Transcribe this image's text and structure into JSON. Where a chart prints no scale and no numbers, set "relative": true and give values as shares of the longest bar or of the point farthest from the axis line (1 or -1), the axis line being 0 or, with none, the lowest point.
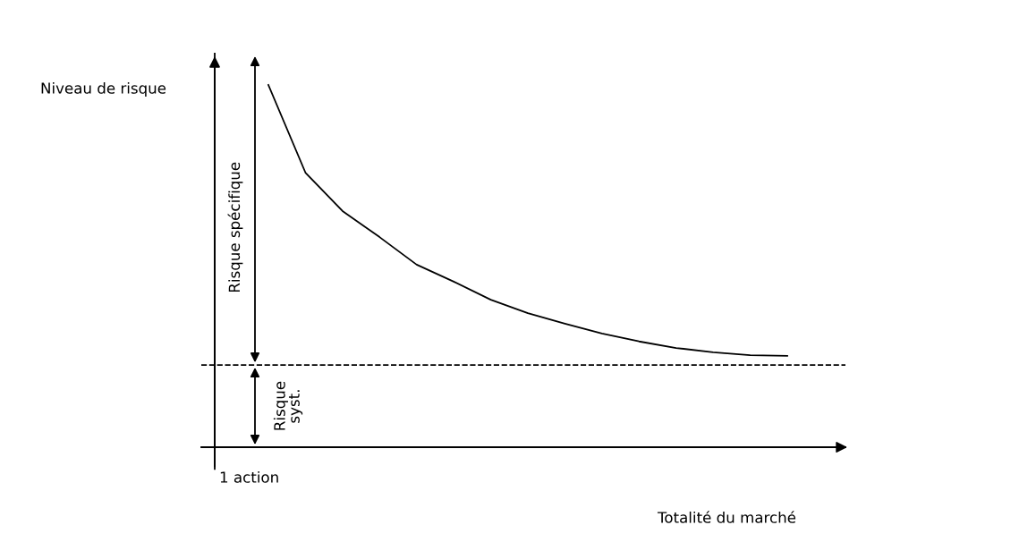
{
  "chart_data": {
    "type": "line",
    "relative": true,
    "xlabel": "Totalité du marché",
    "categories": [
      null,
      null,
      null,
      null,
      null,
      null,
      null,
      null,
      null,
      null,
      null,
      null,
      null,
      null,
      null
    ],
    "series": [
      {
        "color": "#000000",
        "values": [
          1.0,
          0.758,
          0.652,
          0.58,
          0.504,
          0.457,
          0.407,
          0.37,
          0.341,
          0.314,
          0.292,
          0.274,
          0.262,
          0.254,
          0.252
        ]
      }
    ],
    "ref_lines": [
      {
        "axis": "y",
        "value": 0.227,
        "color": "#000000",
        "line_style": "dashed"
      }
    ],
    "annotations": [
      "Risque spécifique",
      "Risque syst.",
      "1 action",
      "Niveau de risque"
    ],
    "grid": false,
    "legend": false,
    "marker": "none",
    "line_style": "solid"
  }
}
